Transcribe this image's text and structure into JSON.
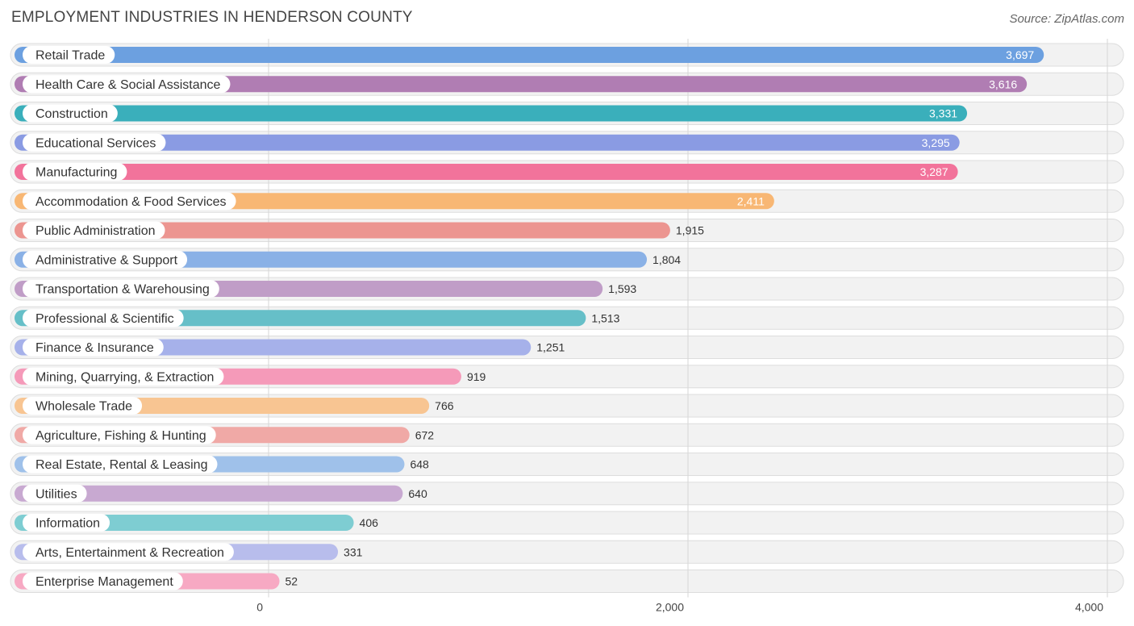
{
  "chart_data": {
    "type": "bar",
    "orientation": "horizontal",
    "title": "EMPLOYMENT INDUSTRIES IN HENDERSON COUNTY",
    "source": "Source: ZipAtlas.com",
    "xlabel": "",
    "ylabel": "",
    "xlim": [
      0,
      4000
    ],
    "ticks": [
      {
        "value": 0,
        "label": "0"
      },
      {
        "value": 2000,
        "label": "2,000"
      },
      {
        "value": 4000,
        "label": "4,000"
      }
    ],
    "grid": true,
    "categories": [
      "Retail Trade",
      "Health Care & Social Assistance",
      "Construction",
      "Educational Services",
      "Manufacturing",
      "Accommodation & Food Services",
      "Public Administration",
      "Administrative & Support",
      "Transportation & Warehousing",
      "Professional & Scientific",
      "Finance & Insurance",
      "Mining, Quarrying, & Extraction",
      "Wholesale Trade",
      "Agriculture, Fishing & Hunting",
      "Real Estate, Rental & Leasing",
      "Utilities",
      "Information",
      "Arts, Entertainment & Recreation",
      "Enterprise Management"
    ],
    "values": [
      3697,
      3616,
      3331,
      3295,
      3287,
      2411,
      1915,
      1804,
      1593,
      1513,
      1251,
      919,
      766,
      672,
      648,
      640,
      406,
      331,
      52
    ],
    "value_labels": [
      "3,697",
      "3,616",
      "3,331",
      "3,295",
      "3,287",
      "2,411",
      "1,915",
      "1,804",
      "1,593",
      "1,513",
      "1,251",
      "919",
      "766",
      "672",
      "648",
      "640",
      "406",
      "331",
      "52"
    ],
    "colors": [
      "#6ca0e0",
      "#b07db3",
      "#3aafbb",
      "#8a9be3",
      "#f2739b",
      "#f8b774",
      "#ec9590",
      "#8ab1e6",
      "#c09dc7",
      "#66bfc8",
      "#a6b1ea",
      "#f59ab9",
      "#f8c592",
      "#f0a9a6",
      "#9fc1ea",
      "#c8a9d1",
      "#7ecdd2",
      "#b8bdec",
      "#f7a9c3"
    ]
  }
}
